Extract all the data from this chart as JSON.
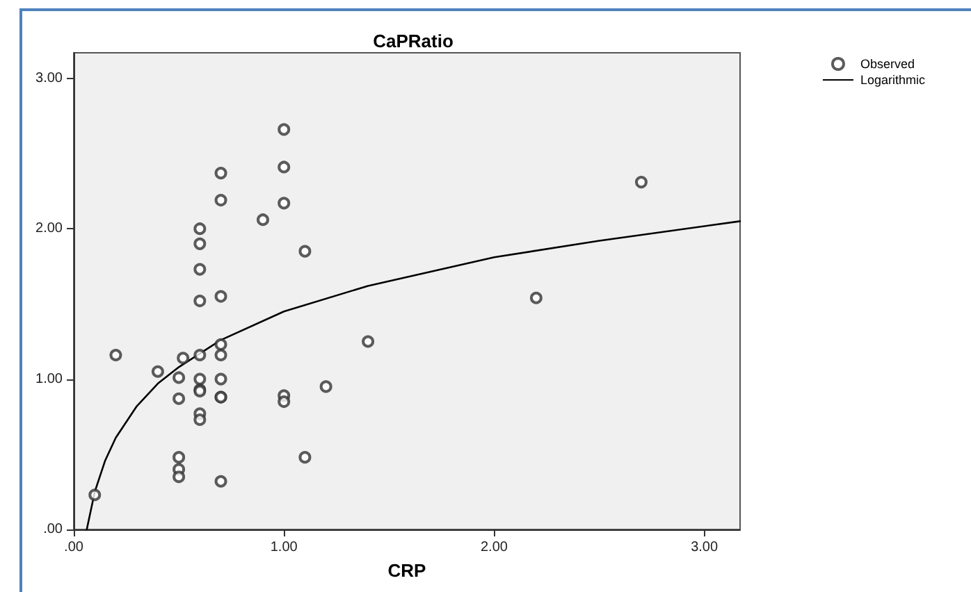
{
  "chart_data": {
    "type": "scatter",
    "title": "CaPRatio",
    "xlabel": "CRP",
    "xlim": [
      0,
      3.17
    ],
    "ylim": [
      0,
      3.17
    ],
    "xticks": [
      {
        "value": 0,
        "label": ".00"
      },
      {
        "value": 1,
        "label": "1.00"
      },
      {
        "value": 2,
        "label": "2.00"
      },
      {
        "value": 3,
        "label": "3.00"
      }
    ],
    "yticks": [
      {
        "value": 0,
        "label": ".00"
      },
      {
        "value": 1,
        "label": "1.00"
      },
      {
        "value": 2,
        "label": "2.00"
      },
      {
        "value": 3,
        "label": "3.00"
      }
    ],
    "grid": false,
    "legend": "top right",
    "series": [
      {
        "name": "Observed",
        "marker": "circle",
        "color": "#333333",
        "x": [
          1.0,
          1.0,
          1.0,
          0.7,
          0.7,
          0.9,
          0.6,
          0.6,
          0.6,
          1.1,
          0.6,
          0.7,
          0.2,
          0.4,
          0.52,
          0.6,
          0.7,
          0.7,
          0.5,
          0.6,
          0.7,
          0.6,
          0.6,
          0.7,
          0.7,
          0.5,
          1.0,
          1.0,
          1.2,
          0.6,
          0.6,
          0.5,
          0.5,
          0.5,
          1.1,
          0.7,
          0.1,
          1.4,
          2.2,
          2.7
        ],
        "values": [
          2.66,
          2.41,
          2.17,
          2.37,
          2.19,
          2.06,
          2.0,
          1.9,
          1.73,
          1.85,
          1.52,
          1.55,
          1.16,
          1.05,
          1.14,
          1.16,
          1.23,
          1.16,
          1.01,
          1.0,
          1.0,
          0.93,
          0.92,
          0.88,
          0.88,
          0.87,
          0.89,
          0.85,
          0.95,
          0.77,
          0.73,
          0.48,
          0.4,
          0.35,
          0.48,
          0.32,
          0.23,
          1.25,
          1.54,
          2.31
        ]
      },
      {
        "name": "Logarithmic",
        "type": "line",
        "marker": "none",
        "line_style": "solid",
        "color": "#000000",
        "x": [
          0.062,
          0.1,
          0.15,
          0.2,
          0.3,
          0.4,
          0.5,
          0.7,
          1.0,
          1.4,
          2.0,
          2.5,
          3.17
        ],
        "values": [
          0,
          0.25,
          0.46,
          0.61,
          0.82,
          0.97,
          1.08,
          1.26,
          1.45,
          1.62,
          1.81,
          1.92,
          2.05
        ]
      }
    ]
  }
}
